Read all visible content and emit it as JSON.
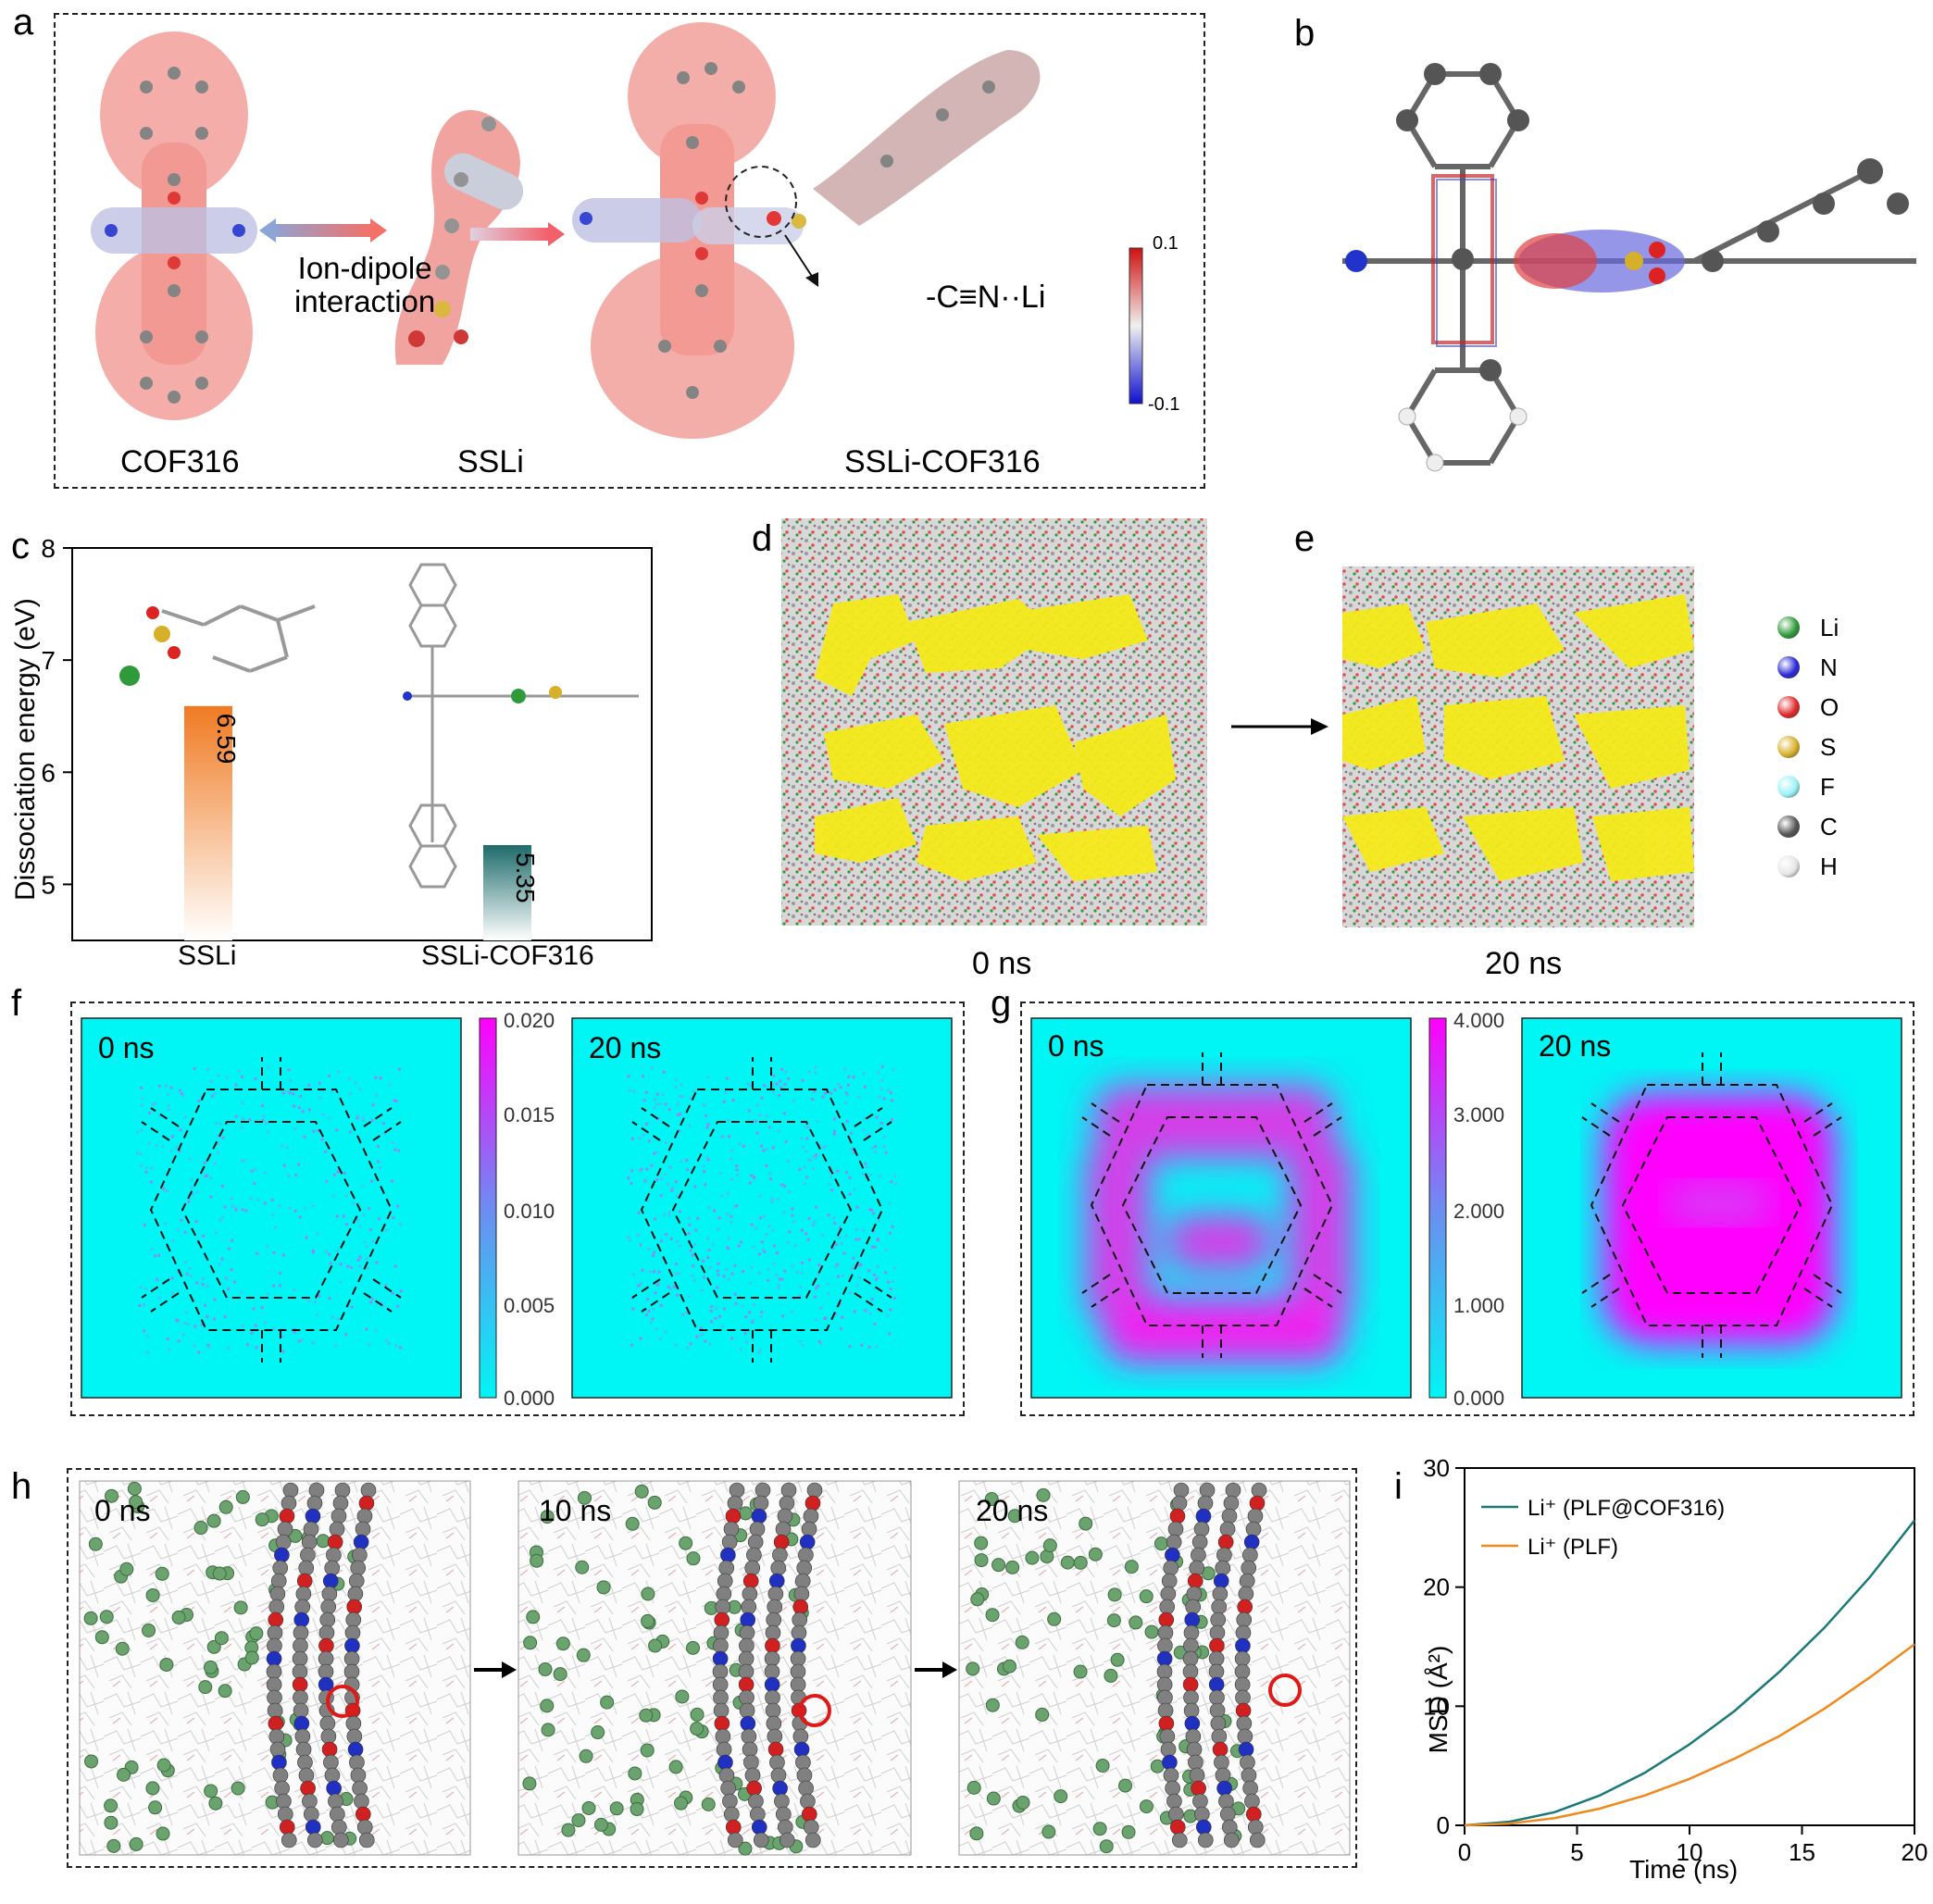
{
  "panels": {
    "a": "a",
    "b": "b",
    "c": "c",
    "d": "d",
    "e": "e",
    "f": "f",
    "g": "g",
    "h": "h",
    "i": "i"
  },
  "panel_a": {
    "labels": [
      "COF316",
      "SSLi",
      "SSLi-COF316"
    ],
    "interaction": "Ion-dipole\ninteraction",
    "interaction_line1": "Ion-dipole",
    "interaction_line2": "interaction",
    "bond_label": "-C≡N··Li",
    "colorbar_max": "0.1",
    "colorbar_min": "-0.1"
  },
  "panel_de": {
    "time_left": "0 ns",
    "time_right": "20 ns",
    "legend": [
      {
        "label": "Li",
        "color": "#2e9a3a"
      },
      {
        "label": "N",
        "color": "#2a2ad6"
      },
      {
        "label": "O",
        "color": "#e02a2a"
      },
      {
        "label": "S",
        "color": "#d7b02a"
      },
      {
        "label": "F",
        "color": "#9af2f6"
      },
      {
        "label": "C",
        "color": "#555555"
      },
      {
        "label": "H",
        "color": "#e6e6e6"
      }
    ]
  },
  "panel_f": {
    "maps": [
      "0 ns",
      "20 ns"
    ],
    "colorbar_ticks": [
      "0.020",
      "0.015",
      "0.010",
      "0.005",
      "0.000"
    ]
  },
  "panel_g": {
    "maps": [
      "0 ns",
      "20 ns"
    ],
    "colorbar_ticks": [
      "4.000",
      "3.000",
      "2.000",
      "1.000",
      "0.000"
    ]
  },
  "panel_h": {
    "frames": [
      "0 ns",
      "10 ns",
      "20 ns"
    ]
  },
  "chart_data": [
    {
      "type": "bar",
      "panel": "c",
      "categories": [
        "SSLi",
        "SSLi-COF316"
      ],
      "values": [
        6.59,
        5.35
      ],
      "value_labels": [
        "6.59",
        "5.35"
      ],
      "colors": [
        "#f07a22",
        "#1e6b6b"
      ],
      "ylabel": "Dissociation energy (eV)",
      "ylim": [
        4.5,
        8
      ],
      "yticks": [
        "5",
        "6",
        "7",
        "8"
      ]
    },
    {
      "type": "line",
      "panel": "i",
      "xlabel": "Time (ns)",
      "ylabel": "MSD (Å²)",
      "xlim": [
        0,
        20
      ],
      "ylim": [
        0,
        30
      ],
      "xticks": [
        "0",
        "5",
        "10",
        "15",
        "20"
      ],
      "yticks": [
        "0",
        "10",
        "20",
        "30"
      ],
      "legend_position": "top-left",
      "series": [
        {
          "name": "Li⁺ (PLF@COF316)",
          "color": "#1a7a78",
          "x": [
            0,
            2,
            4,
            6,
            8,
            10,
            12,
            14,
            16,
            18,
            20
          ],
          "y": [
            0,
            0.3,
            1.1,
            2.5,
            4.4,
            6.8,
            9.6,
            12.9,
            16.6,
            20.8,
            25.6
          ]
        },
        {
          "name": "Li⁺ (PLF)",
          "color": "#f08a1e",
          "x": [
            0,
            2,
            4,
            6,
            8,
            10,
            12,
            14,
            16,
            18,
            20
          ],
          "y": [
            0,
            0.15,
            0.6,
            1.4,
            2.5,
            3.9,
            5.6,
            7.5,
            9.8,
            12.4,
            15.2
          ]
        }
      ]
    }
  ]
}
